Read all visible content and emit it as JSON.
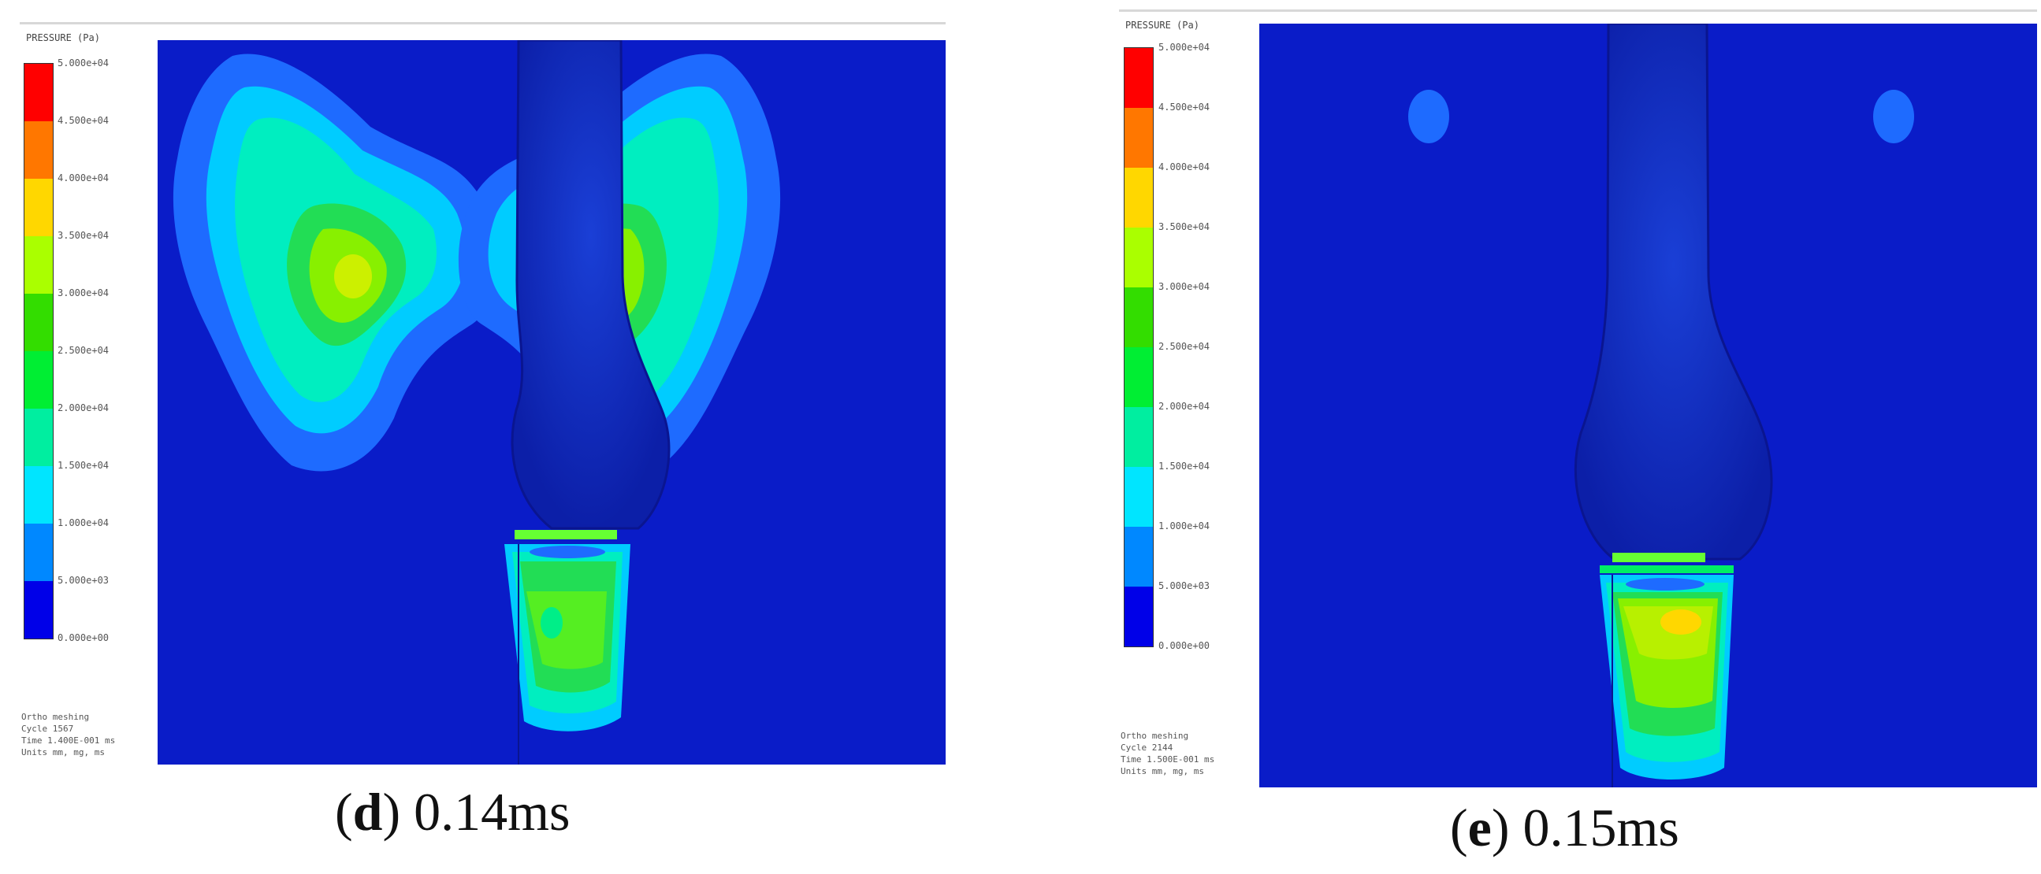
{
  "panel_d": {
    "legend_title": "PRESSURE (Pa)",
    "legend_colors": [
      "#ff0000",
      "#ff7700",
      "#ffd700",
      "#aaff00",
      "#33dd00",
      "#00ee33",
      "#00eea0",
      "#00e5ff",
      "#0088ff",
      "#0000e8"
    ],
    "legend_ticks": [
      "5.000e+04",
      "4.500e+04",
      "4.000e+04",
      "3.500e+04",
      "3.000e+04",
      "2.500e+04",
      "2.000e+04",
      "1.500e+04",
      "1.000e+04",
      "5.000e+03",
      "0.000e+00"
    ],
    "footer": [
      "Ortho meshing",
      "Cycle 1567",
      "Time 1.400E-001 ms",
      "Units mm, mg, ms"
    ],
    "caption_letter": "d",
    "caption_time": "0.14ms"
  },
  "panel_e": {
    "legend_title": "PRESSURE (Pa)",
    "legend_colors": [
      "#ff0000",
      "#ff7700",
      "#ffd700",
      "#aaff00",
      "#33dd00",
      "#00ee33",
      "#00eea0",
      "#00e5ff",
      "#0088ff",
      "#0000e8"
    ],
    "legend_ticks": [
      "5.000e+04",
      "4.500e+04",
      "4.000e+04",
      "3.500e+04",
      "3.000e+04",
      "2.500e+04",
      "2.000e+04",
      "1.500e+04",
      "1.000e+04",
      "5.000e+03",
      "0.000e+00"
    ],
    "footer": [
      "Ortho meshing",
      "Cycle 2144",
      "Time 1.500E-001 ms",
      "Units mm, mg, ms"
    ],
    "caption_letter": "e",
    "caption_time": "0.15ms"
  }
}
